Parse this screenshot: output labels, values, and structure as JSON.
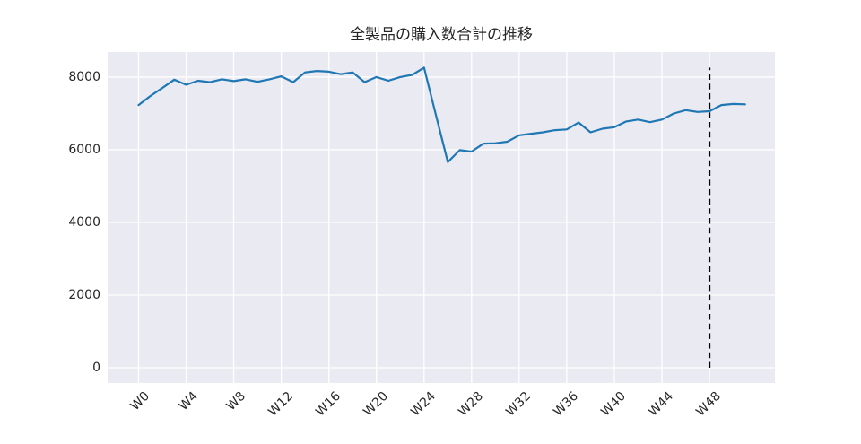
{
  "chart_data": {
    "type": "line",
    "title": "全製品の購入数合計の推移",
    "xlabel": "",
    "ylabel": "",
    "legend": false,
    "grid": true,
    "x_unit": "week",
    "x": [
      0,
      1,
      2,
      3,
      4,
      5,
      6,
      7,
      8,
      9,
      10,
      11,
      12,
      13,
      14,
      15,
      16,
      17,
      18,
      19,
      20,
      21,
      22,
      23,
      24,
      25,
      26,
      27,
      28,
      29,
      30,
      31,
      32,
      33,
      34,
      35,
      36,
      37,
      38,
      39,
      40,
      41,
      42,
      43,
      44,
      45,
      46,
      47,
      48,
      49,
      50,
      51
    ],
    "series": [
      {
        "name": "全製品の購入数合計",
        "values": [
          7230,
          7480,
          7700,
          7930,
          7790,
          7900,
          7860,
          7940,
          7890,
          7940,
          7870,
          7940,
          8020,
          7860,
          8130,
          8170,
          8150,
          8080,
          8130,
          7860,
          8000,
          7900,
          8000,
          8060,
          8260,
          6960,
          5660,
          5990,
          5950,
          6170,
          6180,
          6220,
          6400,
          6440,
          6480,
          6540,
          6560,
          6750,
          6480,
          6580,
          6620,
          6780,
          6830,
          6760,
          6830,
          7000,
          7090,
          7040,
          7060,
          7230,
          7260,
          7250
        ]
      }
    ],
    "x_ticks": [
      0,
      4,
      8,
      12,
      16,
      20,
      24,
      28,
      32,
      36,
      40,
      44,
      48
    ],
    "x_tick_labels": [
      "W0",
      "W4",
      "W8",
      "W12",
      "W16",
      "W20",
      "W24",
      "W28",
      "W32",
      "W36",
      "W40",
      "W44",
      "W48"
    ],
    "y_ticks": [
      0,
      2000,
      4000,
      6000,
      8000
    ],
    "y_tick_labels": [
      "0",
      "2000",
      "4000",
      "6000",
      "8000"
    ],
    "xlim": [
      -2.6,
      53.5
    ],
    "ylim": [
      -420,
      8690
    ],
    "vline": {
      "x": 48,
      "ymin": 0,
      "ymax": 8260,
      "style": "dashed",
      "color": "#000000"
    },
    "colors": {
      "line": "#1f77b4",
      "plot_background": "#eaeaf2",
      "grid": "#ffffff",
      "text": "#262626",
      "vline": "#000000"
    }
  }
}
